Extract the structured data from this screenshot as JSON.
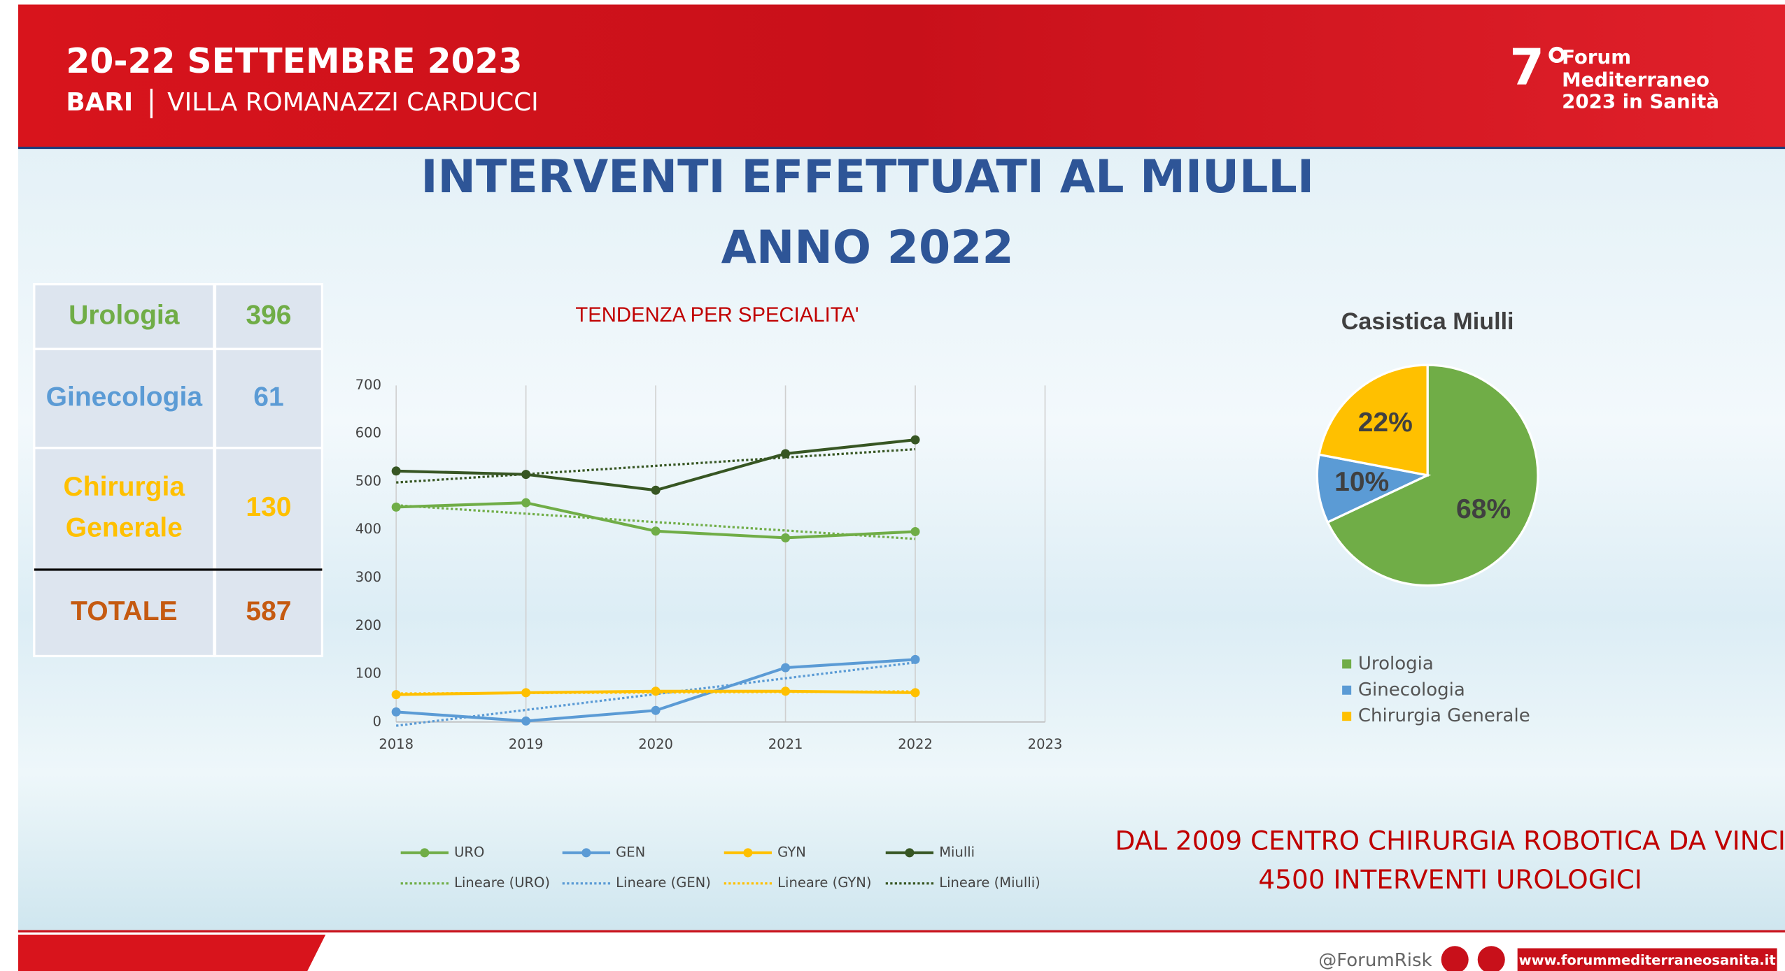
{
  "header": {
    "dates": "20-22 SETTEMBRE 2023",
    "city": "BARI",
    "venue": "VILLA ROMANAZZI CARDUCCI",
    "logo": {
      "number": "7°",
      "lines": [
        "Forum",
        "Mediterraneo",
        "2023 in Sanità"
      ]
    }
  },
  "title": [
    "INTERVENTI EFFETTUATI AL MIULLI",
    "ANNO 2022"
  ],
  "table": {
    "rows": [
      {
        "label": [
          "Urologia"
        ],
        "value": 396,
        "color": "#70ad47"
      },
      {
        "label": [
          "Ginecologia"
        ],
        "value": 61,
        "color": "#5b9bd5"
      },
      {
        "label": [
          "Chirurgia",
          "Generale"
        ],
        "value": 130,
        "color": "#ffc000"
      },
      {
        "label": [
          "TOTALE"
        ],
        "value": 587,
        "color": "#c55a11"
      }
    ]
  },
  "chart_data": [
    {
      "type": "line",
      "title": "TENDENZA PER SPECIALITA'",
      "x": [
        2018,
        2019,
        2020,
        2021,
        2022
      ],
      "series": [
        {
          "name": "URO",
          "color": "#70ad47",
          "trendline": "Lineare (URO)",
          "values": [
            447,
            456,
            397,
            383,
            396
          ]
        },
        {
          "name": "GEN",
          "color": "#5b9bd5",
          "trendline": "Lineare (GEN)",
          "values": [
            21,
            2,
            24,
            113,
            130
          ]
        },
        {
          "name": "GYN",
          "color": "#ffc000",
          "trendline": "Lineare (GYN)",
          "values": [
            57,
            61,
            64,
            64,
            61
          ]
        },
        {
          "name": "Miulli",
          "color": "#375623",
          "trendline": "Lineare (Miulli)",
          "values": [
            522,
            515,
            482,
            558,
            587
          ]
        }
      ],
      "xlim": [
        2018,
        2023
      ],
      "xticks": [
        2018,
        2019,
        2020,
        2021,
        2022,
        2023
      ],
      "ylim": [
        0,
        700
      ],
      "yticks": [
        0,
        100,
        200,
        300,
        400,
        500,
        600,
        700
      ],
      "grid": true
    },
    {
      "type": "pie",
      "title": "Casistica Miulli",
      "categories": [
        "Urologia",
        "Ginecologia",
        "Chirurgia Generale"
      ],
      "values": [
        68,
        10,
        22
      ],
      "value_labels": [
        "68%",
        "10%",
        "22%"
      ],
      "colors": [
        "#70ad47",
        "#5b9bd5",
        "#ffc000"
      ]
    }
  ],
  "note": [
    "DAL 2009 CENTRO CHIRURGIA ROBOTICA DA VINCI",
    "4500 INTERVENTI UROLOGICI"
  ],
  "footer": {
    "handle": "@ForumRisk",
    "url": "www.forummediterraneosanita.it"
  }
}
